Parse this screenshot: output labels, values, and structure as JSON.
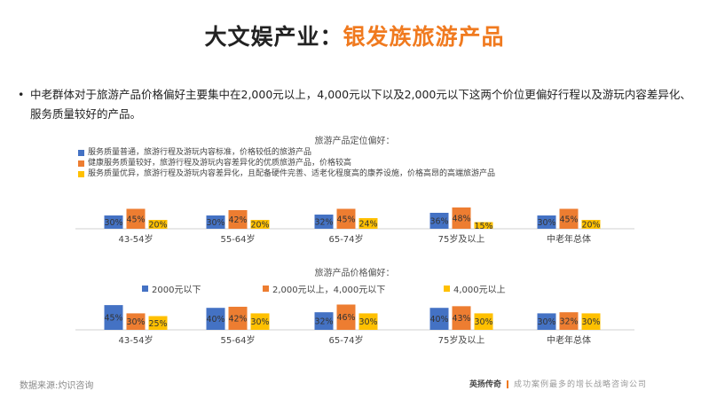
{
  "slide": {
    "title_main": "大文娱产业：",
    "title_accent": "银发族旅游产品",
    "bullet": "中老群体对于旅游产品价格偏好主要集中在2,000元以上，4,000元以下以及2,000元以下这两个价位更偏好行程以及游玩内容差异化、服务质量较好的产品。",
    "source": "数据来源:灼识咨询",
    "brand_name": "英扬传奇",
    "brand_slogan": "成功案例最多的增长战略咨询公司"
  },
  "colors": {
    "blue": "#4472c4",
    "orange": "#ed7d31",
    "yellow": "#ffc000",
    "accent": "#f07a1f"
  },
  "chart_data": [
    {
      "type": "bar",
      "title": "旅游产品定位偏好：",
      "categories": [
        "43-54岁",
        "55-64岁",
        "65-74岁",
        "75岁及以上",
        "中老年总体"
      ],
      "series": [
        {
          "name": "服务质量普通，旅游行程及游玩内容标准，价格较低的旅游产品",
          "color": "#4472c4",
          "values": [
            30,
            30,
            32,
            36,
            30
          ],
          "labels": [
            "30%",
            "30%",
            "32%",
            "36%",
            "30%"
          ]
        },
        {
          "name": "健康服务质量较好，旅游行程及游玩内容差异化的优质旅游产品，价格较高",
          "color": "#ed7d31",
          "values": [
            45,
            42,
            45,
            48,
            45
          ],
          "labels": [
            "45%",
            "42%",
            "45%",
            "48%",
            "45%"
          ]
        },
        {
          "name": "服务质量优异，旅游行程及游玩内容差异化，且配备硬件完善、适老化程度高的康养设施，价格高昂的高端旅游产品",
          "color": "#ffc000",
          "values": [
            20,
            20,
            24,
            15,
            20
          ],
          "labels": [
            "20%",
            "20%",
            "24%",
            "15%",
            "20%"
          ]
        }
      ]
    },
    {
      "type": "bar",
      "title": "旅游产品价格偏好：",
      "categories": [
        "43-54岁",
        "55-64岁",
        "65-74岁",
        "75岁及以上",
        "中老年总体"
      ],
      "series": [
        {
          "name": "2000元以下",
          "color": "#4472c4",
          "values": [
            45,
            40,
            32,
            40,
            30
          ],
          "labels": [
            "45%",
            "40%",
            "32%",
            "40%",
            "30%"
          ]
        },
        {
          "name": "2,000元以上，4,000元以下",
          "color": "#ed7d31",
          "values": [
            30,
            42,
            46,
            43,
            32
          ],
          "labels": [
            "30%",
            "42%",
            "46%",
            "43%",
            "32%"
          ]
        },
        {
          "name": "4,000元以上",
          "color": "#ffc000",
          "values": [
            25,
            30,
            30,
            30,
            30
          ],
          "labels": [
            "25%",
            "30%",
            "30%",
            "30%",
            "30%"
          ]
        }
      ]
    }
  ]
}
